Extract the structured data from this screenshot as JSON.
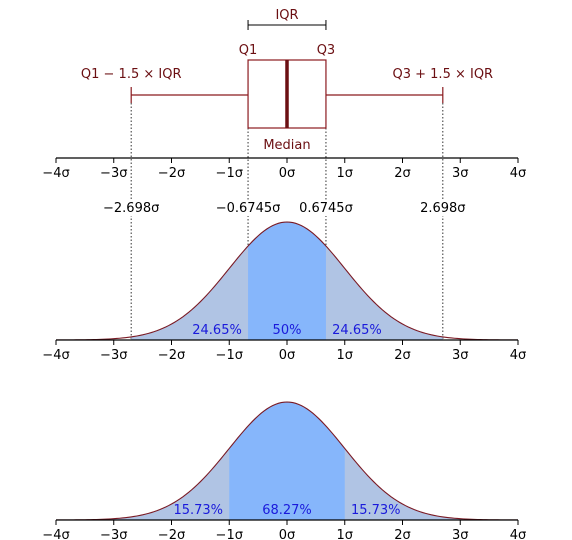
{
  "colors": {
    "curve": "#7a1a24",
    "box": "#8b1a1f",
    "median_line": "#6b0f12",
    "outer_fill": "#b0c4e4",
    "inner_fill": "#86b6fb",
    "percent_text": "#1a1adb"
  },
  "boxplot": {
    "iqr_label": "IQR",
    "q1_label": "Q1",
    "q3_label": "Q3",
    "median_label": "Median",
    "lower_whisker_label": "Q1 − 1.5 × IQR",
    "upper_whisker_label": "Q3 + 1.5 × IQR",
    "q1": -0.6745,
    "q3": 0.6745,
    "median": 0,
    "lower_whisker": -2.698,
    "upper_whisker": 2.698
  },
  "axis": {
    "ticks": [
      -4,
      -3,
      -2,
      -1,
      0,
      1,
      2,
      3,
      4
    ],
    "tick_labels": [
      "−4σ",
      "−3σ",
      "−2σ",
      "−1σ",
      "0σ",
      "1σ",
      "2σ",
      "3σ",
      "4σ"
    ]
  },
  "markers": [
    {
      "value": -2.698,
      "label": "−2.698σ"
    },
    {
      "value": -0.6745,
      "label": "−0.6745σ"
    },
    {
      "value": 0.6745,
      "label": "0.6745σ"
    },
    {
      "value": 2.698,
      "label": "2.698σ"
    }
  ],
  "distributions": [
    {
      "name": "iqr",
      "outer_region": [
        -2.698,
        2.698
      ],
      "inner_region": [
        -0.6745,
        0.6745
      ],
      "labels": {
        "left": "24.65%",
        "center": "50%",
        "right": "24.65%"
      }
    },
    {
      "name": "sigma",
      "outer_region": [
        -4,
        4
      ],
      "inner_region": [
        -1,
        1
      ],
      "labels": {
        "left": "15.73%",
        "center": "68.27%",
        "right": "15.73%"
      }
    }
  ]
}
